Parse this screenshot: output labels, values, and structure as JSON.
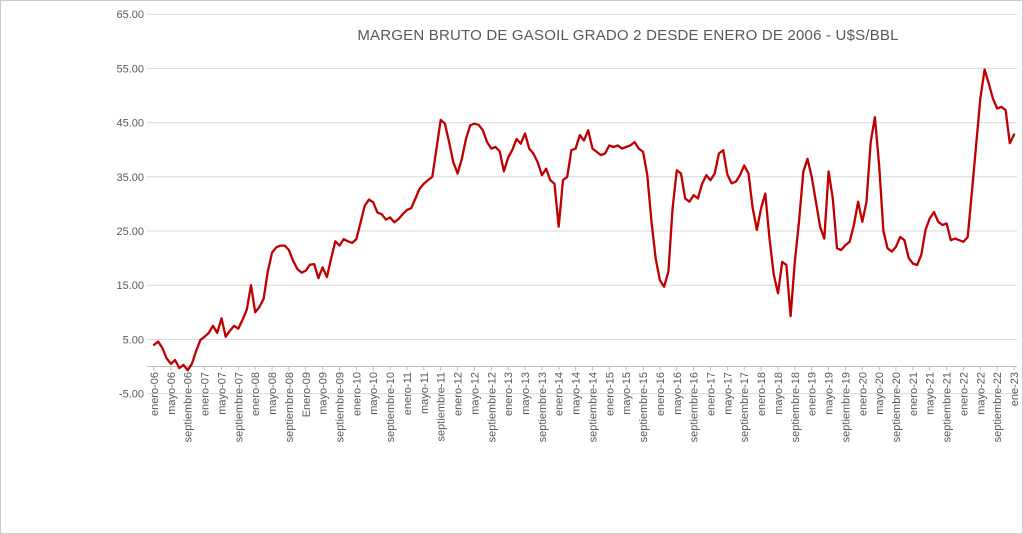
{
  "chart_data": {
    "type": "line",
    "title": "MARGEN BRUTO DE GASOIL GRADO 2 DESDE ENERO DE 2006 - U$S/BBL",
    "series_color": "#c00000",
    "gridline_color": "#d9d9d9",
    "axis_color": "#bfbfbf",
    "label_color": "#595959",
    "background_color": "#ffffff",
    "legend": "none",
    "grid": "horizontal",
    "x_tick_interval_months": 4,
    "x_range": [
      "enero-06",
      "ene-23"
    ],
    "ylim": [
      -5,
      65
    ],
    "y_step": 10,
    "y_tick_labels": [
      "65.00",
      "55.00",
      "45.00",
      "35.00",
      "25.00",
      "15.00",
      "5.00",
      "-5.00"
    ],
    "x_tick_labels": [
      "enero-06",
      "mayo-06",
      "septiembre-06",
      "enero-07",
      "mayo-07",
      "septiembre-07",
      "enero-08",
      "mayo-08",
      "septiembre-08",
      "Enero-09",
      "mayo-09",
      "septiembre-09",
      "enero-10",
      "mayo-10",
      "septiembre-10",
      "enero-11",
      "mayo-11",
      "septiembre-11",
      "enero-12",
      "mayo-12",
      "septiembre-12",
      "enero-13",
      "mayo-13",
      "septiembre-13",
      "enero-14",
      "mayo-14",
      "septiembre-14",
      "enero-15",
      "mayo-15",
      "septiembre-15",
      "enero-16",
      "mayo-16",
      "septiembre-16",
      "enero-17",
      "mayo-17",
      "septiembre-17",
      "enero-18",
      "mayo-18",
      "septiembre-18",
      "enero-19",
      "mayo-19",
      "septiembre-19",
      "enero-20",
      "mayo-20",
      "septiembre-20",
      "enero-21",
      "mayo-21",
      "septiembre-21",
      "enero-22",
      "mayo-22",
      "septiembre-22",
      "ene-23"
    ],
    "values_monthly_usd_bbl": [
      4.0,
      4.6,
      3.4,
      1.5,
      0.5,
      1.2,
      -0.3,
      0.3,
      -0.7,
      0.5,
      2.9,
      4.9,
      5.5,
      6.2,
      7.5,
      6.2,
      8.9,
      5.5,
      6.6,
      7.5,
      7.0,
      8.6,
      10.5,
      15.0,
      10.0,
      11.0,
      12.5,
      17.5,
      21.0,
      22.0,
      22.3,
      22.3,
      21.5,
      19.5,
      18.0,
      17.3,
      17.7,
      18.8,
      18.9,
      16.3,
      18.3,
      16.5,
      19.9,
      23.1,
      22.3,
      23.5,
      23.1,
      22.8,
      23.5,
      26.6,
      29.7,
      30.8,
      30.3,
      28.4,
      28.1,
      27.1,
      27.5,
      26.6,
      27.2,
      28.1,
      28.9,
      29.2,
      31.0,
      32.8,
      33.7,
      34.4,
      35.0,
      40.2,
      45.5,
      44.8,
      41.4,
      37.7,
      35.6,
      38.3,
      42.0,
      44.5,
      44.8,
      44.6,
      43.6,
      41.4,
      40.2,
      40.5,
      39.7,
      36.0,
      38.5,
      40.0,
      42.0,
      41.1,
      43.0,
      40.2,
      39.3,
      37.7,
      35.3,
      36.5,
      34.4,
      33.7,
      25.8,
      34.4,
      35.0,
      39.9,
      40.2,
      42.7,
      41.7,
      43.6,
      40.2,
      39.6,
      39.0,
      39.3,
      40.8,
      40.5,
      40.8,
      40.2,
      40.5,
      40.8,
      41.4,
      40.2,
      39.6,
      35.3,
      26.7,
      19.9,
      15.9,
      14.7,
      17.5,
      29.2,
      36.2,
      35.6,
      31.0,
      30.4,
      31.6,
      31.0,
      33.7,
      35.3,
      34.4,
      35.6,
      39.3,
      39.9,
      35.4,
      33.8,
      34.1,
      35.3,
      37.1,
      35.6,
      29.2,
      25.2,
      29.2,
      31.9,
      23.6,
      16.9,
      13.5,
      19.3,
      18.7,
      9.3,
      19.3,
      26.7,
      35.9,
      38.3,
      35.0,
      30.4,
      25.8,
      23.6,
      36.0,
      31.0,
      21.8,
      21.5,
      22.4,
      23.0,
      26.1,
      30.4,
      26.7,
      30.4,
      41.4,
      46.0,
      37.0,
      25.0,
      21.8,
      21.2,
      22.1,
      23.9,
      23.3,
      20.0,
      19.0,
      18.7,
      20.6,
      25.2,
      27.3,
      28.5,
      26.7,
      26.1,
      26.4,
      23.3,
      23.6,
      23.3,
      23.0,
      23.9,
      32.2,
      40.8,
      49.4,
      54.8,
      52.2,
      49.4,
      47.6,
      47.9,
      47.3,
      41.2,
      42.8
    ]
  }
}
